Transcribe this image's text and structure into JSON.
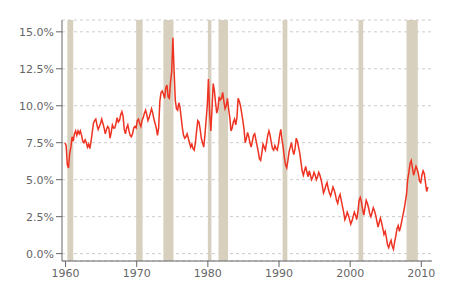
{
  "chart_data": {
    "type": "line",
    "color": "#ee3322",
    "grid": true,
    "xlim": [
      1959.5,
      2011.5
    ],
    "xticks": [
      1960,
      1970,
      1980,
      1990,
      2000,
      2010
    ],
    "ylim": [
      -0.5,
      15.8
    ],
    "yticks": [
      {
        "value": 0.0,
        "label": "0.0%"
      },
      {
        "value": 2.5,
        "label": "2.5%"
      },
      {
        "value": 5.0,
        "label": "5.0%"
      },
      {
        "value": 7.5,
        "label": "7.5%"
      },
      {
        "value": 10.0,
        "label": "10.0%"
      },
      {
        "value": 12.5,
        "label": "12.5%"
      },
      {
        "value": 15.0,
        "label": "15.0%"
      }
    ],
    "bands": {
      "color": "#d8d0be",
      "ranges": [
        [
          1960.25,
          1961.08
        ],
        [
          1969.92,
          1970.83
        ],
        [
          1973.75,
          1975.17
        ],
        [
          1980.0,
          1980.5
        ],
        [
          1981.5,
          1982.83
        ],
        [
          1990.5,
          1991.17
        ],
        [
          2001.17,
          2001.83
        ],
        [
          2007.92,
          2009.5
        ]
      ]
    },
    "x": [
      1959.917,
      1960.083,
      1960.25,
      1960.417,
      1960.583,
      1960.75,
      1960.917,
      1961.083,
      1961.25,
      1961.417,
      1961.583,
      1961.75,
      1961.917,
      1962.083,
      1962.25,
      1962.417,
      1962.583,
      1962.75,
      1962.917,
      1963.083,
      1963.25,
      1963.417,
      1963.583,
      1963.75,
      1963.917,
      1964.083,
      1964.25,
      1964.417,
      1964.583,
      1964.75,
      1964.917,
      1965.083,
      1965.25,
      1965.417,
      1965.583,
      1965.75,
      1965.917,
      1966.083,
      1966.25,
      1966.417,
      1966.583,
      1966.75,
      1966.917,
      1967.083,
      1967.25,
      1967.417,
      1967.583,
      1967.75,
      1967.917,
      1968.083,
      1968.25,
      1968.417,
      1968.583,
      1968.75,
      1968.917,
      1969.083,
      1969.25,
      1969.417,
      1969.583,
      1969.75,
      1969.917,
      1970.083,
      1970.25,
      1970.417,
      1970.583,
      1970.75,
      1970.917,
      1971.083,
      1971.25,
      1971.417,
      1971.583,
      1971.75,
      1971.917,
      1972.083,
      1972.25,
      1972.417,
      1972.583,
      1972.75,
      1972.917,
      1973.083,
      1973.25,
      1973.417,
      1973.583,
      1973.75,
      1973.917,
      1974.083,
      1974.25,
      1974.417,
      1974.583,
      1974.75,
      1974.917,
      1975.083,
      1975.25,
      1975.417,
      1975.583,
      1975.75,
      1975.917,
      1976.083,
      1976.25,
      1976.417,
      1976.583,
      1976.75,
      1976.917,
      1977.083,
      1977.25,
      1977.417,
      1977.583,
      1977.75,
      1977.917,
      1978.083,
      1978.25,
      1978.417,
      1978.583,
      1978.75,
      1978.917,
      1979.083,
      1979.25,
      1979.417,
      1979.583,
      1979.75,
      1979.917,
      1980.083,
      1980.25,
      1980.417,
      1980.583,
      1980.75,
      1980.917,
      1981.083,
      1981.25,
      1981.417,
      1981.583,
      1981.75,
      1981.917,
      1982.083,
      1982.25,
      1982.417,
      1982.583,
      1982.75,
      1982.917,
      1983.083,
      1983.25,
      1983.417,
      1983.583,
      1983.75,
      1983.917,
      1984.083,
      1984.25,
      1984.417,
      1984.583,
      1984.75,
      1984.917,
      1985.083,
      1985.25,
      1985.417,
      1985.583,
      1985.75,
      1985.917,
      1986.083,
      1986.25,
      1986.417,
      1986.583,
      1986.75,
      1986.917,
      1987.083,
      1987.25,
      1987.417,
      1987.583,
      1987.75,
      1987.917,
      1988.083,
      1988.25,
      1988.417,
      1988.583,
      1988.75,
      1988.917,
      1989.083,
      1989.25,
      1989.417,
      1989.583,
      1989.75,
      1989.917,
      1990.083,
      1990.25,
      1990.417,
      1990.583,
      1990.75,
      1990.917,
      1991.083,
      1991.25,
      1991.417,
      1991.583,
      1991.75,
      1991.917,
      1992.083,
      1992.25,
      1992.417,
      1992.583,
      1992.75,
      1992.917,
      1993.083,
      1993.25,
      1993.417,
      1993.583,
      1993.75,
      1993.917,
      1994.083,
      1994.25,
      1994.417,
      1994.583,
      1994.75,
      1994.917,
      1995.083,
      1995.25,
      1995.417,
      1995.583,
      1995.75,
      1995.917,
      1996.083,
      1996.25,
      1996.417,
      1996.583,
      1996.75,
      1996.917,
      1997.083,
      1997.25,
      1997.417,
      1997.583,
      1997.75,
      1997.917,
      1998.083,
      1998.25,
      1998.417,
      1998.583,
      1998.75,
      1998.917,
      1999.083,
      1999.25,
      1999.417,
      1999.583,
      1999.75,
      1999.917,
      2000.083,
      2000.25,
      2000.417,
      2000.583,
      2000.75,
      2000.917,
      2001.083,
      2001.25,
      2001.417,
      2001.583,
      2001.75,
      2001.917,
      2002.083,
      2002.25,
      2002.417,
      2002.583,
      2002.75,
      2002.917,
      2003.083,
      2003.25,
      2003.417,
      2003.583,
      2003.75,
      2003.917,
      2004.083,
      2004.25,
      2004.417,
      2004.583,
      2004.75,
      2004.917,
      2005.083,
      2005.25,
      2005.417,
      2005.583,
      2005.75,
      2005.917,
      2006.083,
      2006.25,
      2006.417,
      2006.583,
      2006.75,
      2006.917,
      2007.083,
      2007.25,
      2007.417,
      2007.583,
      2007.75,
      2007.917,
      2008.083,
      2008.25,
      2008.417,
      2008.583,
      2008.75,
      2008.917,
      2009.083,
      2009.25,
      2009.417,
      2009.583,
      2009.75,
      2009.917,
      2010.083,
      2010.25,
      2010.417,
      2010.583,
      2010.75,
      2010.917
    ],
    "values": [
      7.5,
      7.3,
      6.0,
      5.8,
      6.8,
      7.2,
      7.9,
      7.6,
      8.1,
      8.3,
      8.0,
      8.3,
      8.1,
      8.3,
      8.0,
      7.6,
      7.5,
      7.7,
      7.5,
      7.2,
      7.4,
      7.1,
      7.6,
      8.2,
      8.8,
      9.0,
      9.1,
      8.7,
      8.4,
      8.6,
      8.8,
      9.1,
      8.8,
      8.5,
      8.1,
      8.4,
      8.6,
      8.5,
      7.8,
      8.2,
      8.7,
      8.5,
      8.5,
      8.8,
      9.2,
      8.9,
      9.0,
      9.4,
      9.6,
      9.3,
      8.4,
      8.1,
      8.5,
      8.7,
      8.3,
      8.0,
      7.9,
      8.1,
      8.5,
      8.6,
      8.5,
      9.0,
      9.1,
      8.8,
      8.6,
      9.0,
      9.2,
      9.5,
      9.7,
      9.4,
      9.0,
      9.2,
      9.5,
      9.8,
      9.5,
      9.1,
      8.8,
      8.5,
      8.0,
      8.5,
      10.3,
      10.9,
      11.0,
      10.8,
      10.5,
      11.2,
      11.4,
      10.6,
      10.5,
      11.6,
      12.3,
      14.6,
      12.4,
      10.4,
      9.8,
      9.7,
      10.2,
      9.9,
      9.2,
      8.5,
      8.0,
      7.8,
      7.9,
      8.1,
      7.8,
      7.5,
      7.2,
      7.4,
      7.1,
      7.0,
      7.5,
      8.3,
      9.0,
      8.9,
      8.4,
      7.8,
      7.5,
      7.2,
      8.0,
      9.0,
      10.0,
      11.8,
      9.5,
      8.3,
      9.8,
      11.5,
      11.0,
      10.2,
      9.5,
      9.8,
      10.6,
      10.4,
      10.5,
      10.9,
      10.3,
      9.8,
      10.0,
      10.5,
      9.8,
      9.2,
      8.3,
      8.5,
      8.9,
      9.1,
      8.7,
      9.2,
      10.5,
      10.3,
      10.0,
      9.5,
      9.0,
      8.4,
      7.5,
      7.8,
      8.2,
      7.9,
      7.5,
      7.2,
      7.6,
      8.0,
      8.1,
      7.7,
      7.3,
      6.9,
      6.4,
      6.3,
      6.8,
      7.4,
      7.2,
      7.0,
      7.5,
      8.0,
      8.3,
      8.0,
      7.5,
      7.1,
      7.0,
      7.3,
      7.1,
      7.0,
      7.4,
      8.0,
      8.4,
      7.7,
      7.2,
      6.5,
      6.0,
      5.8,
      6.3,
      6.9,
      7.2,
      7.5,
      7.0,
      6.7,
      7.1,
      7.8,
      7.6,
      7.2,
      6.8,
      6.2,
      5.6,
      5.3,
      5.6,
      5.9,
      5.5,
      5.2,
      5.6,
      5.3,
      5.0,
      5.2,
      5.5,
      5.3,
      5.0,
      5.2,
      5.5,
      5.3,
      5.0,
      4.6,
      4.1,
      4.3,
      4.6,
      4.8,
      4.4,
      4.1,
      3.9,
      4.2,
      4.5,
      4.3,
      4.0,
      3.6,
      3.4,
      3.8,
      4.0,
      3.6,
      3.2,
      2.8,
      2.3,
      2.5,
      2.8,
      2.6,
      2.3,
      2.0,
      2.2,
      2.5,
      2.8,
      2.6,
      2.3,
      2.8,
      3.6,
      3.8,
      3.5,
      3.0,
      2.6,
      3.1,
      3.6,
      3.4,
      3.1,
      2.7,
      2.5,
      2.8,
      3.1,
      2.9,
      2.6,
      2.2,
      1.8,
      2.1,
      2.4,
      2.1,
      1.7,
      1.3,
      1.5,
      1.1,
      0.6,
      0.4,
      0.7,
      0.9,
      0.5,
      0.3,
      0.8,
      1.2,
      1.7,
      1.9,
      1.5,
      1.8,
      2.2,
      2.6,
      3.0,
      3.5,
      4.0,
      5.0,
      5.5,
      6.1,
      6.3,
      5.8,
      5.3,
      5.6,
      5.9,
      5.7,
      5.4,
      4.9,
      4.8,
      5.3,
      5.6,
      5.4,
      4.8,
      4.2,
      4.5
    ]
  }
}
